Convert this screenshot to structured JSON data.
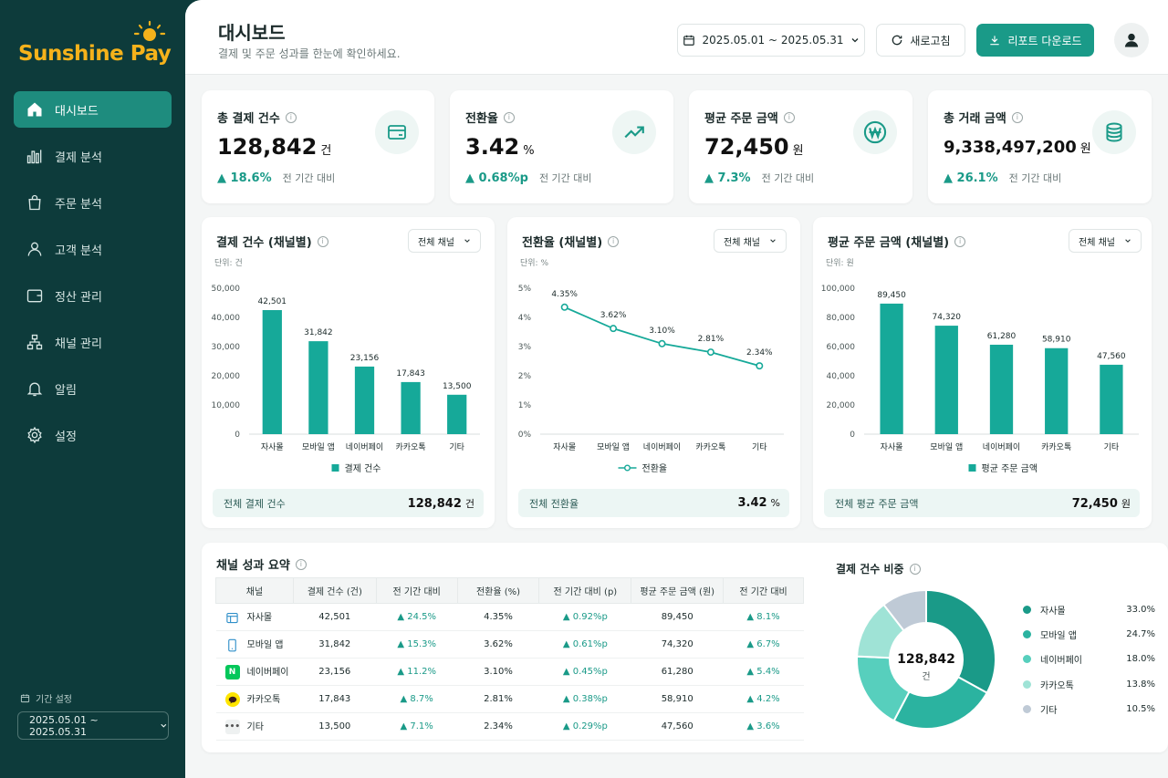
{
  "brand": {
    "name_part1": "Sunshine",
    "name_part2": "Pay"
  },
  "sidebar": {
    "items": [
      {
        "label": "대시보드",
        "icon": "home-icon"
      },
      {
        "label": "결제 분석",
        "icon": "bar-chart-icon"
      },
      {
        "label": "주문 분석",
        "icon": "shopping-bag-icon"
      },
      {
        "label": "고객 분석",
        "icon": "user-icon"
      },
      {
        "label": "정산 관리",
        "icon": "wallet-icon"
      },
      {
        "label": "채널 관리",
        "icon": "sitemap-icon"
      },
      {
        "label": "알림",
        "icon": "bell-icon"
      },
      {
        "label": "설정",
        "icon": "gear-icon"
      }
    ],
    "period_label": "기간 설정",
    "period_value": "2025.05.01 ~ 2025.05.31"
  },
  "header": {
    "title": "대시보드",
    "subtitle": "결제 및 주문 성과를 한눈에 확인하세요.",
    "date_range": "2025.05.01 ~ 2025.05.31",
    "refresh_label": "새로고침",
    "download_label": "리포트 다운로드"
  },
  "kpis": [
    {
      "title": "총 결제 건수",
      "value": "128,842",
      "unit": "건",
      "delta": "▲ 18.6%",
      "compare": "전 기간 대비",
      "icon": "card-icon"
    },
    {
      "title": "전환율",
      "value": "3.42",
      "unit": "%",
      "delta": "▲ 0.68%p",
      "compare": "전 기간 대비",
      "icon": "trend-up-icon"
    },
    {
      "title": "평균 주문 금액",
      "value": "72,450",
      "unit": "원",
      "delta": "▲ 7.3%",
      "compare": "전 기간 대비",
      "icon": "won-icon"
    },
    {
      "title": "총 거래 금액",
      "value": "9,338,497,200",
      "unit": "원",
      "delta": "▲ 26.1%",
      "compare": "전 기간 대비",
      "icon": "coins-icon"
    }
  ],
  "charts": [
    {
      "title": "결제 건수 (채널별)",
      "select": "전체 채널",
      "unit": "단위: 건",
      "footer_label": "전체 결제 건수",
      "footer_value": "128,842",
      "footer_unit": "건"
    },
    {
      "title": "전환율 (채널별)",
      "select": "전체 채널",
      "unit": "단위: %",
      "footer_label": "전체 전환율",
      "footer_value": "3.42",
      "footer_unit": "%"
    },
    {
      "title": "평균 주문 금액 (채널별)",
      "select": "전체 채널",
      "unit": "단위: 원",
      "footer_label": "전체 평균 주문 금액",
      "footer_value": "72,450",
      "footer_unit": "원"
    }
  ],
  "chart_data": [
    {
      "type": "bar",
      "categories": [
        "자사몰",
        "모바일 앱",
        "네이버페이",
        "카카오톡",
        "기타"
      ],
      "series": [
        {
          "name": "결제 건수",
          "values": [
            42501,
            31842,
            23156,
            17843,
            13500
          ]
        }
      ],
      "data_labels": [
        "42,501",
        "31,842",
        "23,156",
        "17,843",
        "13,500"
      ],
      "ylim": [
        0,
        50000
      ],
      "yticks": [
        "0",
        "10,000",
        "20,000",
        "30,000",
        "40,000",
        "50,000"
      ],
      "color": "#16a999"
    },
    {
      "type": "line",
      "categories": [
        "자사몰",
        "모바일 앱",
        "네이버페이",
        "카카오톡",
        "기타"
      ],
      "series": [
        {
          "name": "전환율",
          "values": [
            4.35,
            3.62,
            3.1,
            2.81,
            2.34
          ]
        }
      ],
      "data_labels": [
        "4.35%",
        "3.62%",
        "3.10%",
        "2.81%",
        "2.34%"
      ],
      "ylim": [
        0,
        5
      ],
      "yticks": [
        "0%",
        "1%",
        "2%",
        "3%",
        "4%",
        "5%"
      ],
      "color": "#16a999"
    },
    {
      "type": "bar",
      "categories": [
        "자사몰",
        "모바일 앱",
        "네이버페이",
        "카카오톡",
        "기타"
      ],
      "series": [
        {
          "name": "평균 주문 금액",
          "values": [
            89450,
            74320,
            61280,
            58910,
            47560
          ]
        }
      ],
      "data_labels": [
        "89,450",
        "74,320",
        "61,280",
        "58,910",
        "47,560"
      ],
      "ylim": [
        0,
        100000
      ],
      "yticks": [
        "0",
        "20,000",
        "40,000",
        "60,000",
        "80,000",
        "100,000"
      ],
      "color": "#16a999"
    },
    {
      "type": "pie",
      "categories": [
        "자사몰",
        "모바일 앱",
        "네이버페이",
        "카카오톡",
        "기타"
      ],
      "values": [
        33.0,
        24.7,
        18.0,
        13.8,
        10.5
      ],
      "labels": [
        "33.0%",
        "24.7%",
        "18.0%",
        "13.8%",
        "10.5%"
      ],
      "colors": [
        "#1a9a88",
        "#2bb3a0",
        "#57cfbd",
        "#9fe3d6",
        "#bfcad6"
      ],
      "center_value": "128,842",
      "center_unit": "건"
    }
  ],
  "summary": {
    "title": "채널 성과 요약",
    "columns": [
      "채널",
      "결제 건수 (건)",
      "전 기간 대비",
      "전환율 (%)",
      "전 기간 대비 (p)",
      "평균 주문 금액 (원)",
      "전 기간 대비"
    ],
    "rows": [
      {
        "channel": "자사몰",
        "icon": "browser-icon",
        "count": "42,501",
        "count_delta": "▲ 24.5%",
        "rate": "4.35%",
        "rate_delta": "▲ 0.92%p",
        "aov": "89,450",
        "aov_delta": "▲ 8.1%"
      },
      {
        "channel": "모바일 앱",
        "icon": "mobile-icon",
        "count": "31,842",
        "count_delta": "▲ 15.3%",
        "rate": "3.62%",
        "rate_delta": "▲ 0.61%p",
        "aov": "74,320",
        "aov_delta": "▲ 6.7%"
      },
      {
        "channel": "네이버페이",
        "icon": "naver-icon",
        "count": "23,156",
        "count_delta": "▲ 11.2%",
        "rate": "3.10%",
        "rate_delta": "▲ 0.45%p",
        "aov": "61,280",
        "aov_delta": "▲ 5.4%"
      },
      {
        "channel": "카카오톡",
        "icon": "kakao-icon",
        "count": "17,843",
        "count_delta": "▲ 8.7%",
        "rate": "2.81%",
        "rate_delta": "▲ 0.38%p",
        "aov": "58,910",
        "aov_delta": "▲ 4.2%"
      },
      {
        "channel": "기타",
        "icon": "more-icon",
        "count": "13,500",
        "count_delta": "▲ 7.1%",
        "rate": "2.34%",
        "rate_delta": "▲ 0.29%p",
        "aov": "47,560",
        "aov_delta": "▲ 3.6%"
      }
    ],
    "donut_title": "결제 건수 비중"
  },
  "colors": {
    "accent": "#1a9a88",
    "sidebar": "#0d3b3b",
    "brand": "#f5b21b"
  }
}
